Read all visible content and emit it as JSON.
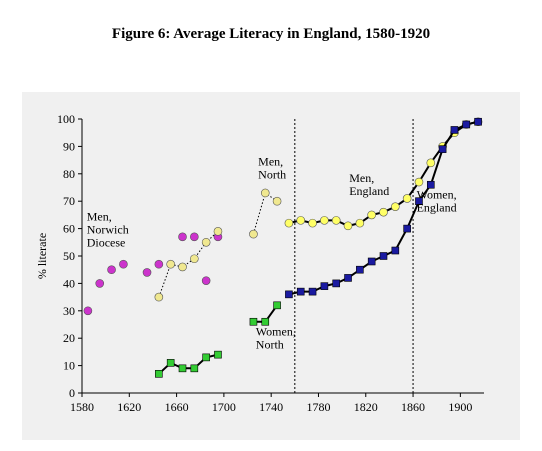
{
  "figure": {
    "title": "Figure 6: Average Literacy in England, 1580-1920"
  },
  "colors": {
    "panel_background": "#f0f0f0",
    "men_norwich": "#cc33cc",
    "men_north": "#f0e890",
    "men_england": "#ffff66",
    "women_england": "#1a1aa0",
    "women_north": "#33cc33",
    "line": "#000000"
  },
  "chart_data": {
    "type": "line",
    "title": "Figure 6: Average Literacy in England, 1580-1920",
    "xlabel": "",
    "ylabel": "% literate",
    "xlim": [
      1580,
      1920
    ],
    "ylim": [
      0,
      100
    ],
    "x_ticks": [
      1580,
      1620,
      1660,
      1700,
      1740,
      1780,
      1820,
      1860,
      1900
    ],
    "y_ticks": [
      0,
      10,
      20,
      30,
      40,
      50,
      60,
      70,
      80,
      90,
      100
    ],
    "grid": false,
    "vertical_reference_lines": [
      1760,
      1860
    ],
    "series": [
      {
        "name": "Men, Norwich Diocese",
        "label_lines": [
          "Men,",
          "Norwich",
          "Diocese"
        ],
        "marker": "circle",
        "color": "#cc33cc",
        "line_style": "none",
        "points": [
          [
            1585,
            30
          ],
          [
            1595,
            40
          ],
          [
            1605,
            45
          ],
          [
            1615,
            47
          ],
          [
            1635,
            44
          ],
          [
            1645,
            47
          ],
          [
            1665,
            57
          ],
          [
            1675,
            57
          ],
          [
            1685,
            41
          ],
          [
            1695,
            57
          ]
        ]
      },
      {
        "name": "Men, North",
        "label_lines": [
          "Men,",
          "North"
        ],
        "marker": "circle",
        "color": "#f0e890",
        "line_style": "dotted",
        "segments": [
          [
            [
              1645,
              35
            ],
            [
              1655,
              47
            ],
            [
              1665,
              46
            ],
            [
              1675,
              49
            ],
            [
              1685,
              55
            ],
            [
              1695,
              59
            ]
          ],
          [
            [
              1725,
              58
            ],
            [
              1735,
              73
            ],
            [
              1745,
              70
            ]
          ]
        ]
      },
      {
        "name": "Men, England",
        "label_lines": [
          "Men,",
          "England"
        ],
        "marker": "circle",
        "color": "#ffff66",
        "line_style": "solid",
        "points": [
          [
            1755,
            62
          ],
          [
            1765,
            63
          ],
          [
            1775,
            62
          ],
          [
            1785,
            63
          ],
          [
            1795,
            63
          ],
          [
            1805,
            61
          ],
          [
            1815,
            62
          ],
          [
            1825,
            65
          ],
          [
            1835,
            66
          ],
          [
            1845,
            68
          ],
          [
            1855,
            71
          ],
          [
            1865,
            77
          ],
          [
            1875,
            84
          ],
          [
            1885,
            90
          ],
          [
            1895,
            95
          ],
          [
            1905,
            98
          ],
          [
            1915,
            99
          ]
        ]
      },
      {
        "name": "Women, England",
        "label_lines": [
          "Women,",
          "England"
        ],
        "marker": "square",
        "color": "#1a1aa0",
        "line_style": "solid",
        "points": [
          [
            1755,
            36
          ],
          [
            1765,
            37
          ],
          [
            1775,
            37
          ],
          [
            1785,
            39
          ],
          [
            1795,
            40
          ],
          [
            1805,
            42
          ],
          [
            1815,
            45
          ],
          [
            1825,
            48
          ],
          [
            1835,
            50
          ],
          [
            1845,
            52
          ],
          [
            1855,
            60
          ],
          [
            1865,
            70
          ],
          [
            1875,
            76
          ],
          [
            1885,
            89
          ],
          [
            1895,
            96
          ],
          [
            1905,
            98
          ],
          [
            1915,
            99
          ]
        ]
      },
      {
        "name": "Women, North",
        "label_lines": [
          "Women,",
          "North"
        ],
        "marker": "square",
        "color": "#33cc33",
        "line_style": "solid",
        "segments": [
          [
            [
              1645,
              7
            ],
            [
              1655,
              11
            ],
            [
              1665,
              9
            ],
            [
              1675,
              9
            ],
            [
              1685,
              13
            ],
            [
              1695,
              14
            ]
          ],
          [
            [
              1725,
              26
            ],
            [
              1735,
              26
            ],
            [
              1745,
              32
            ]
          ]
        ]
      }
    ],
    "annotations": [
      {
        "series": "Men, Norwich Diocese",
        "anchor": [
          1584,
          63
        ]
      },
      {
        "series": "Men, North",
        "anchor": [
          1729,
          83
        ]
      },
      {
        "series": "Men, England",
        "anchor": [
          1806,
          77
        ]
      },
      {
        "series": "Women, England",
        "anchor": [
          1863,
          71
        ]
      },
      {
        "series": "Women, North",
        "anchor": [
          1727,
          21
        ]
      }
    ]
  }
}
